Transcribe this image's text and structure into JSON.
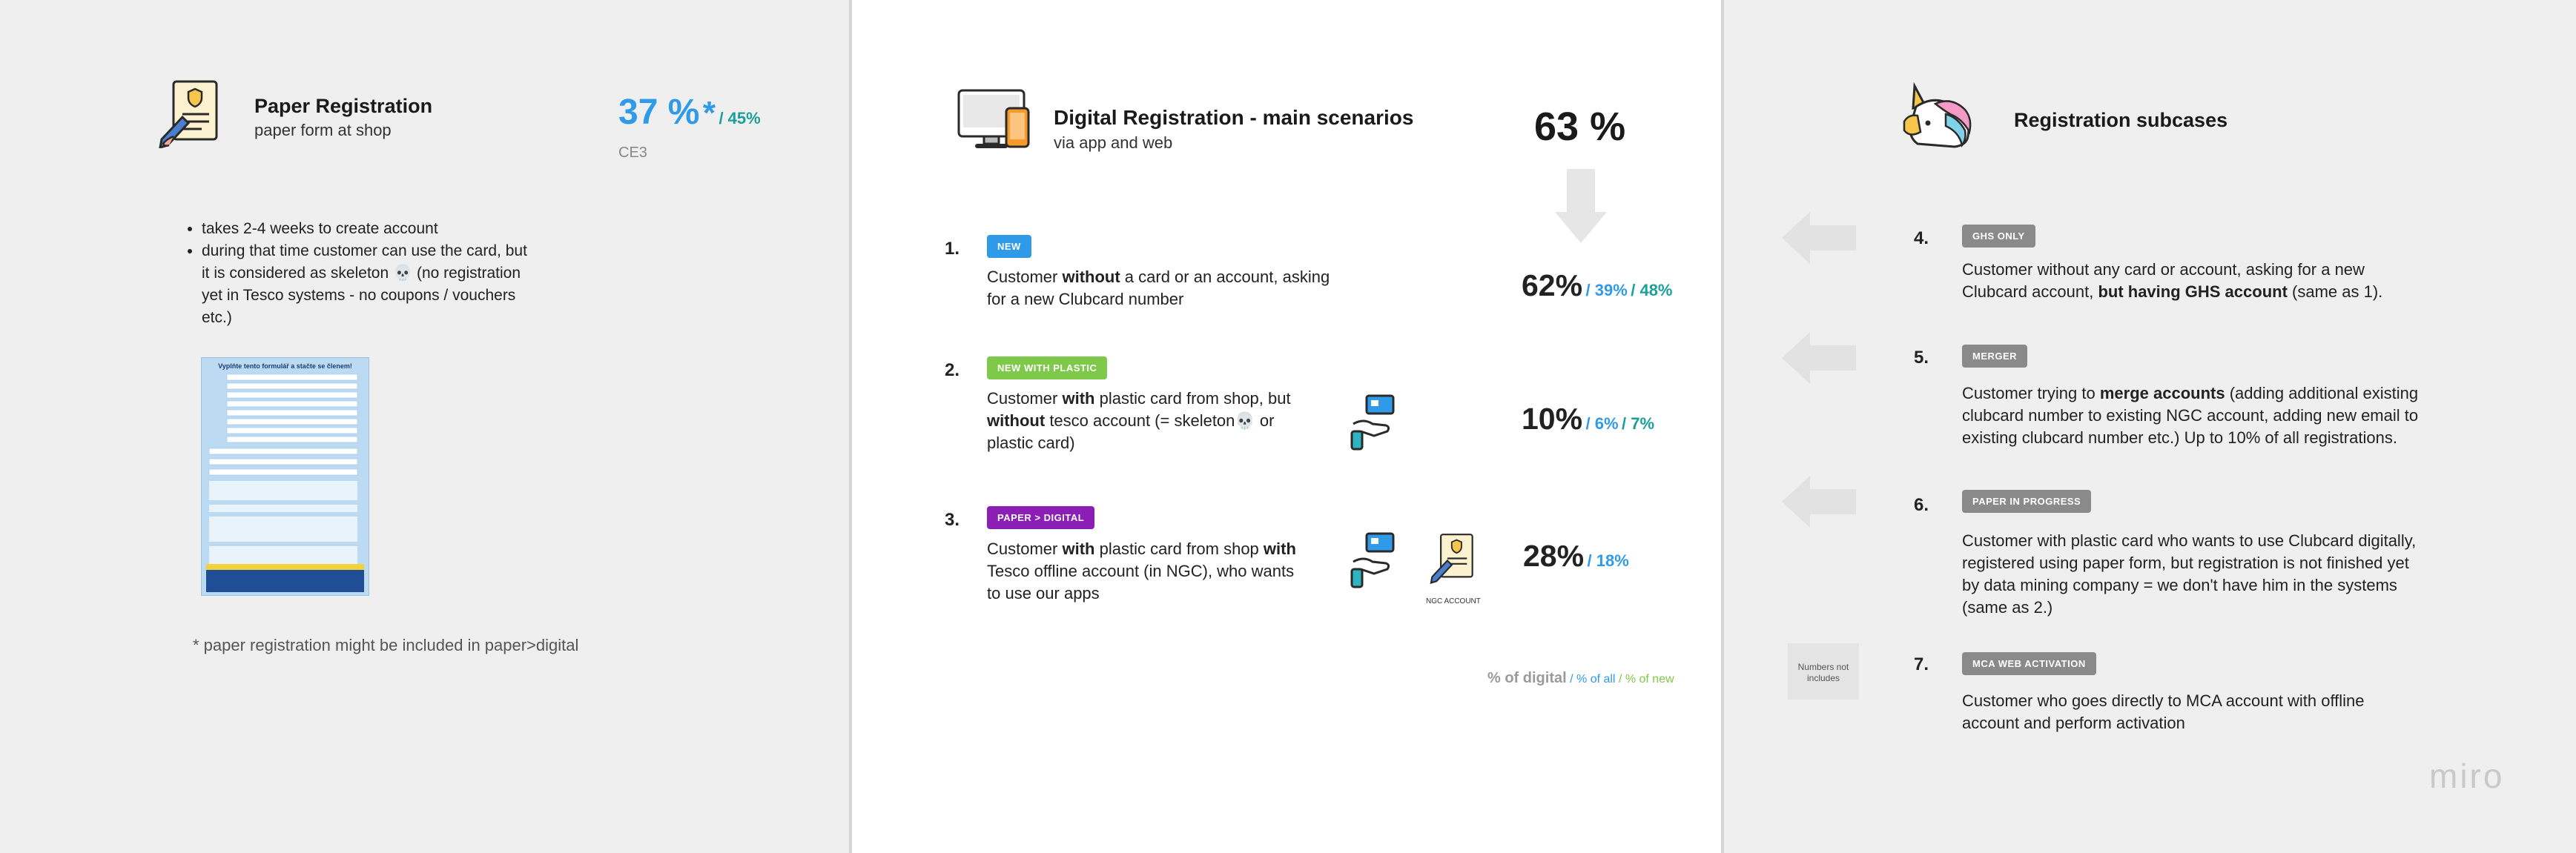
{
  "paper": {
    "title": "Paper Registration",
    "subtitle": "paper form at shop",
    "percent": "37 %",
    "asterisk": "*",
    "percent_of_all": "/ 45%",
    "code": "CE3",
    "bullets": [
      "takes 2-4 weeks to create account",
      "during that time customer can use the card, but it is considered as skeleton 💀 (no registration yet in Tesco systems - no coupons / vouchers etc.)"
    ],
    "form_heading": "Vyplňte tento formulář a stačte se členem!",
    "footnote": "* paper registration might be included in paper>digital"
  },
  "digital": {
    "title": "Digital Registration - main scenarios",
    "subtitle": "via app and web",
    "percent": "63 %",
    "scenarios": [
      {
        "number": "1.",
        "tag": "NEW",
        "text_parts": [
          "Customer ",
          "without",
          " a card or an account, asking for a new Clubcard number"
        ],
        "percent": "62%",
        "of_all": "/ 39%",
        "of_new": "/ 48%"
      },
      {
        "number": "2.",
        "tag": "NEW WITH PLASTIC",
        "text_parts": [
          "Customer ",
          "with",
          " plastic card from shop, but ",
          "without",
          " tesco account (= skeleton💀 or plastic card)"
        ],
        "percent": "10%",
        "of_all": "/ 6%",
        "of_new": "/ 7%"
      },
      {
        "number": "3.",
        "tag": "PAPER > DIGITAL",
        "text_parts": [
          "Customer ",
          "with",
          " plastic card from shop ",
          "with",
          " Tesco offline account (in NGC), who wants to use our apps"
        ],
        "percent": "28%",
        "of_all": "/ 18%",
        "icon_caption": "NGC ACCOUNT"
      }
    ],
    "legend": {
      "of_digital": "% of digital",
      "of_all": "/ % of all",
      "of_new": "/ % of new"
    }
  },
  "subcases": {
    "title": "Registration subcases",
    "items": [
      {
        "number": "4.",
        "tag": "GHS ONLY",
        "text_parts": [
          "Customer without any card or account, asking for a new Clubcard account, ",
          "but having GHS account",
          " (same as 1)."
        ]
      },
      {
        "number": "5.",
        "tag": "MERGER",
        "text_parts": [
          "Customer trying to ",
          "merge accounts",
          " (adding additional existing clubcard number to existing NGC account, adding new email to existing clubcard number etc.) Up to 10% of all registrations."
        ]
      },
      {
        "number": "6.",
        "tag": "PAPER IN PROGRESS",
        "text_parts": [
          "Customer with plastic card who wants to use Clubcard digitally, registered using paper form, but registration is not finished yet by data mining company = we don't have him in the systems (same as 2.)"
        ]
      },
      {
        "number": "7.",
        "tag": "MCA WEB ACTIVATION",
        "text_parts": [
          "Customer who goes directly to MCA account with offline account and perform activation"
        ],
        "note": "Numbers not includes"
      }
    ]
  },
  "colors": {
    "blue": "#2f9be8",
    "teal": "#1a9f9a",
    "green_tag": "#7fc94a",
    "purple_tag": "#8b1fb5",
    "gray_tag": "#8a8a8a"
  },
  "brand": "miro"
}
